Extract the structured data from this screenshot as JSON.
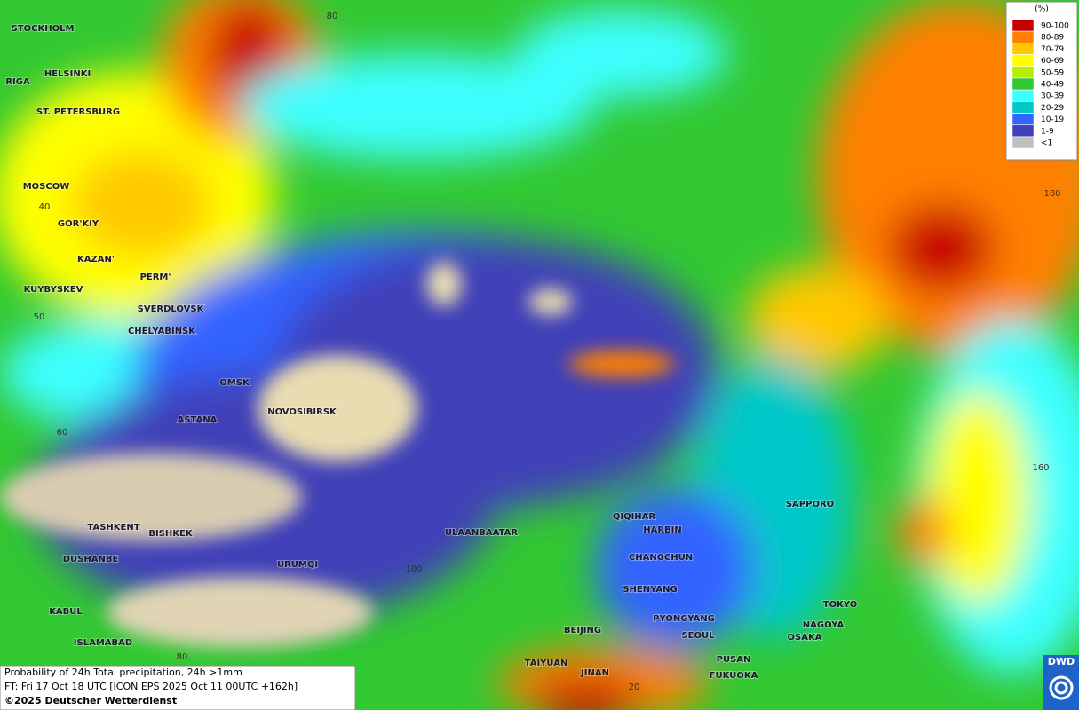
{
  "legend": {
    "unit": "(%)",
    "items": [
      {
        "label": "90-100",
        "color": "#c80000"
      },
      {
        "label": "80-89",
        "color": "#ff8000"
      },
      {
        "label": "70-79",
        "color": "#ffc800"
      },
      {
        "label": "60-69",
        "color": "#ffff00"
      },
      {
        "label": "50-59",
        "color": "#b4f000"
      },
      {
        "label": "40-49",
        "color": "#32c832"
      },
      {
        "label": "30-39",
        "color": "#3cffff"
      },
      {
        "label": "20-29",
        "color": "#00c8c8"
      },
      {
        "label": "10-19",
        "color": "#3264ff"
      },
      {
        "label": "1-9",
        "color": "#4040b8"
      },
      {
        "label": "<1",
        "color": "#c0c0c0"
      }
    ]
  },
  "cities": [
    "STOCKHOLM",
    "HELSINKI",
    "RIGA",
    "ST. PETERSBURG",
    "MOSCOW",
    "GOR'KIY",
    "KAZAN'",
    "PERM'",
    "KUYBYSKEV",
    "SVERDLOVSK",
    "CHELYABINSK",
    "OMSK",
    "ASTANA",
    "NOVOSIBIRSK",
    "TASHKENT",
    "BISHKEK",
    "DUSHANBE",
    "URUMQI",
    "KABUL",
    "ISLAMABAD",
    "ULAANBAATAR",
    "QIQIHAR",
    "HARBIN",
    "CHANGCHUN",
    "SHENYANG",
    "PYONGYANG",
    "BEIJING",
    "SEOUL",
    "TAIYUAN",
    "JINAN",
    "PUSAN",
    "FUKUOKA",
    "SAPPORO",
    "TOKYO",
    "NAGOYA",
    "OSAKA"
  ],
  "grid_labels": [
    "80",
    "40",
    "50",
    "60",
    "180",
    "160",
    "100",
    "80",
    "20"
  ],
  "footer": {
    "title": "Probability of 24h Total precipitation, 24h >1mm",
    "forecast": "FT: Fri 17 Oct 18 UTC [ICON EPS 2025 Oct 11 00UTC +162h]",
    "copyright": "©2025 Deutscher Wetterdienst"
  },
  "logo": "DWD"
}
